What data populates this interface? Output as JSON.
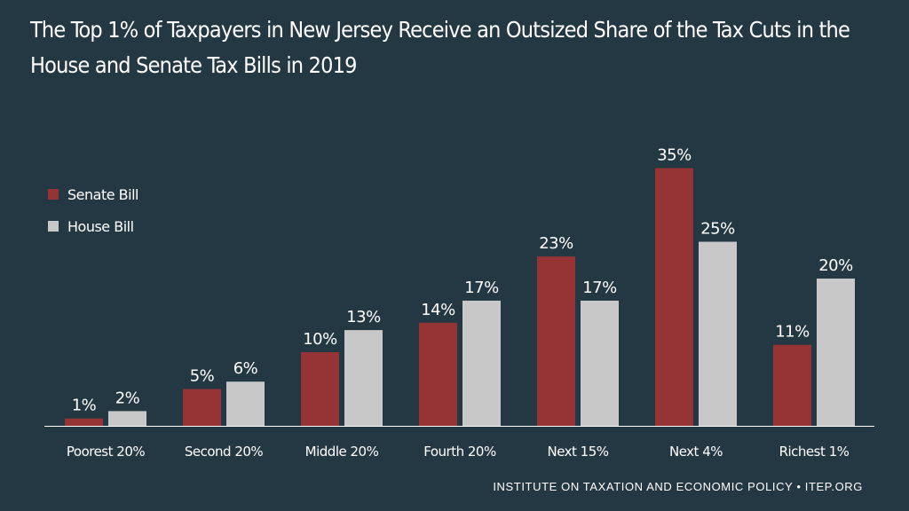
{
  "title": "The Top 1% of Taxpayers in New Jersey Receive an Outsized Share of the Tax Cuts in the House and Senate Tax Bills in 2019",
  "footer": "INSTITUTE ON TAXATION AND ECONOMIC POLICY • ITEP.ORG",
  "legend": [
    {
      "label": "Senate Bill",
      "color": "#963334"
    },
    {
      "label": "House Bill",
      "color": "#c8c8c8"
    }
  ],
  "chart_data": {
    "type": "bar",
    "title": "The Top 1% of Taxpayers in New Jersey Receive an Outsized Share of the Tax Cuts in the House and Senate Tax Bills in 2019",
    "categories": [
      "Poorest 20%",
      "Second 20%",
      "Middle 20%",
      "Fourth 20%",
      "Next 15%",
      "Next 4%",
      "Richest 1%"
    ],
    "series": [
      {
        "name": "Senate Bill",
        "color": "#963334",
        "values": [
          1,
          5,
          10,
          14,
          23,
          35,
          11
        ],
        "labels": [
          "1%",
          "5%",
          "10%",
          "14%",
          "23%",
          "35%",
          "11%"
        ]
      },
      {
        "name": "House Bill",
        "color": "#c8c8c8",
        "values": [
          2,
          6,
          13,
          17,
          17,
          25,
          20
        ],
        "labels": [
          "2%",
          "6%",
          "13%",
          "17%",
          "17%",
          "25%",
          "20%"
        ]
      }
    ],
    "ylim": [
      0,
      40
    ],
    "grid": false,
    "legend_position": "left"
  }
}
